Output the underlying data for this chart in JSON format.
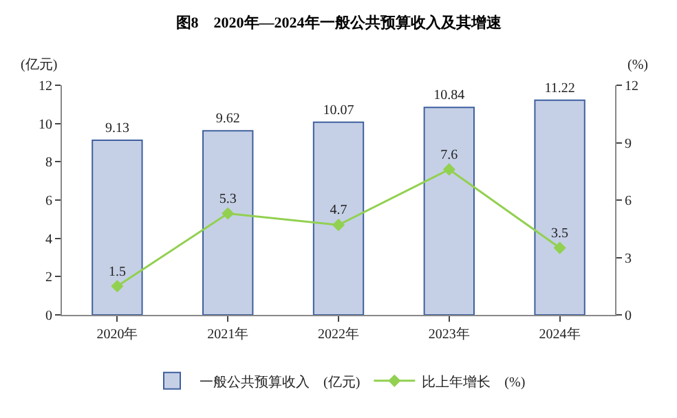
{
  "chart_data": {
    "type": "bar",
    "title": "图8　2020年—2024年一般公共预算收入及其增速",
    "ylabel": "(亿元)",
    "y2label": "(%)",
    "categories": [
      "2020年",
      "2021年",
      "2022年",
      "2023年",
      "2024年"
    ],
    "series": [
      {
        "name": "一般公共预算收入　(亿元)",
        "color": "#c5d0e6",
        "values": [
          9.13,
          9.62,
          10.07,
          10.84,
          11.22
        ]
      },
      {
        "name": "比上年增长　(%)",
        "type": "line",
        "axis": "y2",
        "marker": "diamond",
        "color": "#92d050",
        "values": [
          1.5,
          5.3,
          4.7,
          7.6,
          3.5
        ]
      }
    ],
    "ylim": [
      0,
      12
    ],
    "yticks": [
      0,
      2,
      4,
      6,
      8,
      10,
      12
    ],
    "y2lim": [
      0,
      12
    ],
    "y2ticks": [
      0,
      3,
      6,
      9,
      12
    ],
    "data_labels": true,
    "grid": false,
    "legend": "bottom"
  }
}
